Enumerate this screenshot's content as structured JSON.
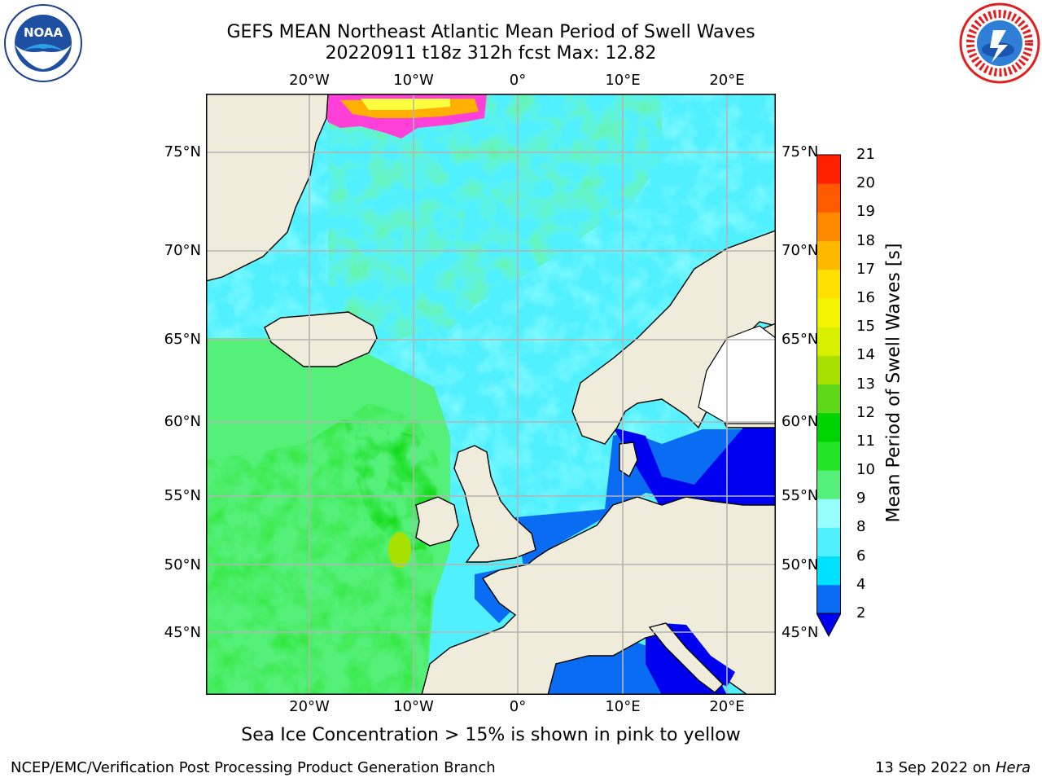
{
  "title": {
    "line1": "GEFS MEAN Northeast Atlantic Mean Period of Swell Waves",
    "line2": "20220911 t18z 312h fcst   Max: 12.82"
  },
  "logos": {
    "left": {
      "icon": "noaa-logo-icon",
      "text": "NOAA"
    },
    "right": {
      "icon": "national-weather-service-logo-icon"
    }
  },
  "map": {
    "lon_ticks": [
      "20°W",
      "10°W",
      "0°",
      "10°E",
      "20°E"
    ],
    "lat_ticks": [
      "75°N",
      "70°N",
      "65°N",
      "60°N",
      "55°N",
      "50°N",
      "45°N"
    ],
    "extent": {
      "lon": [
        -30,
        25
      ],
      "lat": [
        41,
        78
      ]
    },
    "colors": {
      "land": "#efecdc",
      "coast": "#000000",
      "grid": "#b4b4b4"
    }
  },
  "colorbar": {
    "label": "Mean Period of Swell Waves [s]",
    "ticks": [
      "2",
      "4",
      "6",
      "8",
      "9",
      "10",
      "11",
      "12",
      "13",
      "14",
      "15",
      "16",
      "17",
      "18",
      "19",
      "20",
      "21"
    ],
    "colors": [
      "#0a6cf2",
      "#00e0ff",
      "#50f0ff",
      "#98ffff",
      "#55f07a",
      "#24e524",
      "#00d400",
      "#60d81a",
      "#a8e000",
      "#d8f000",
      "#f4f400",
      "#ffe000",
      "#ffb800",
      "#ff8a00",
      "#ff5a00",
      "#ff2000"
    ],
    "under_color": "#0000f0",
    "extend": "min"
  },
  "note": "Sea Ice Concentration > 15% is shown in pink to yellow",
  "footer": {
    "left": "NCEP/EMC/Verification Post Processing Product Generation Branch",
    "right_date": "13 Sep 2022 on",
    "right_host": "Hera"
  }
}
